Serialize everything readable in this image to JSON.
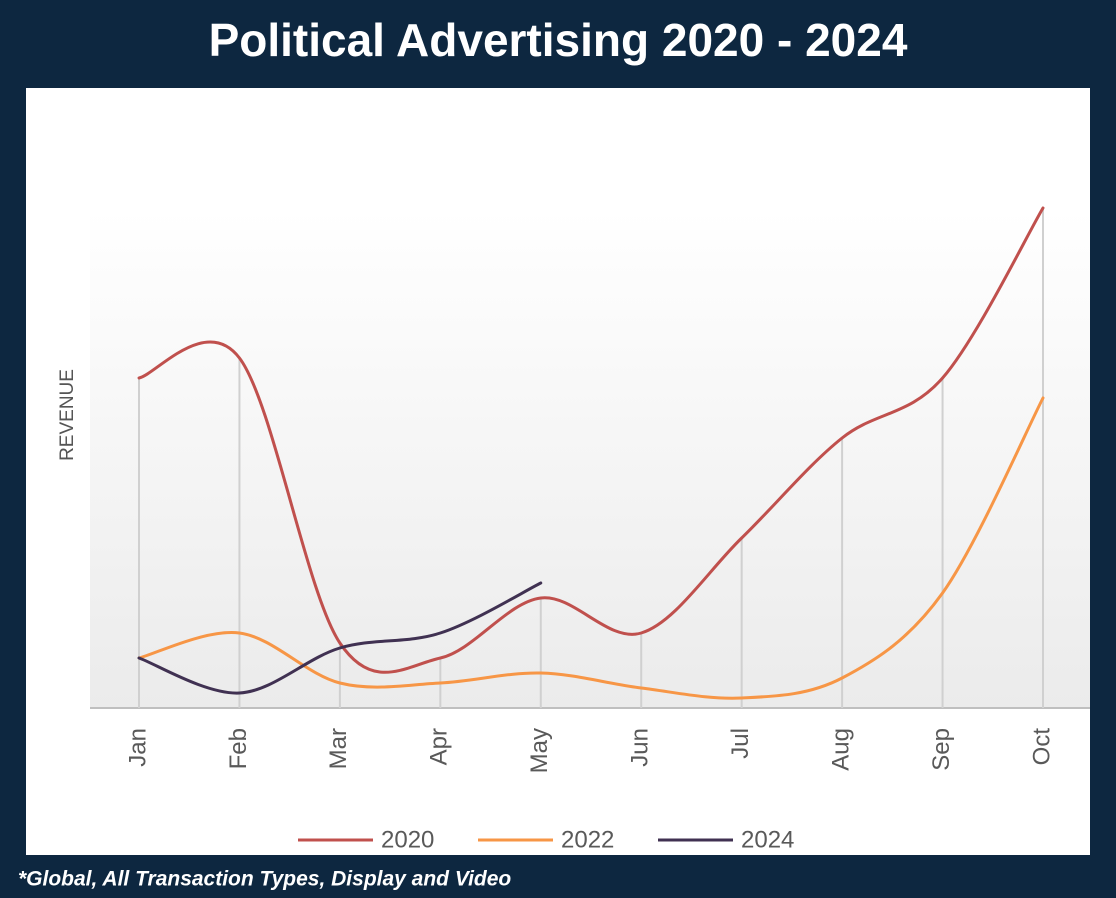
{
  "chart_data": {
    "type": "line",
    "title": "Political Advertising 2020 - 2024",
    "y_label": "REVENUE",
    "footnote": "*Global, All Transaction Types, Display and Video",
    "categories": [
      "Jan",
      "Feb",
      "Mar",
      "Apr",
      "May",
      "Jun",
      "Jul",
      "Aug",
      "Sep",
      "Oct"
    ],
    "ylim": [
      0,
      100
    ],
    "smooth": true,
    "legend": "bottom",
    "series": [
      {
        "name": "2020",
        "color": "#c0504d",
        "values": [
          66,
          70,
          13,
          10,
          22,
          15,
          34,
          54,
          66,
          100
        ]
      },
      {
        "name": "2022",
        "color": "#f79646",
        "values": [
          10,
          15,
          5,
          5,
          7,
          4,
          2,
          6,
          23,
          62
        ]
      },
      {
        "name": "2024",
        "color": "#403152",
        "values": [
          10,
          3,
          12,
          15,
          25,
          null,
          null,
          null,
          null,
          null
        ]
      }
    ]
  }
}
